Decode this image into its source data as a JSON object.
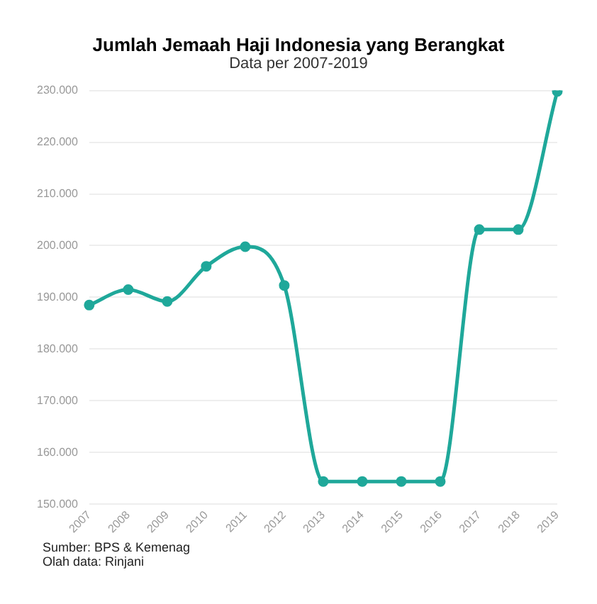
{
  "chart_data": {
    "type": "line",
    "title": "Jumlah Jemaah Haji Indonesia yang Berangkat",
    "subtitle": "Data per 2007-2019",
    "categories": [
      "2007",
      "2008",
      "2009",
      "2010",
      "2011",
      "2012",
      "2013",
      "2014",
      "2015",
      "2016",
      "2017",
      "2018",
      "2019"
    ],
    "series": [
      {
        "color": "#1fa89a",
        "values": [
          188500,
          191500,
          189200,
          196000,
          199800,
          192300,
          154400,
          154400,
          154400,
          154400,
          203100,
          203100,
          229800
        ]
      }
    ],
    "ylim": [
      150000,
      230000
    ],
    "yticks": [
      {
        "value": 150000,
        "label": "150.000"
      },
      {
        "value": 160000,
        "label": "160.000"
      },
      {
        "value": 170000,
        "label": "170.000"
      },
      {
        "value": 180000,
        "label": "180.000"
      },
      {
        "value": 190000,
        "label": "190.000"
      },
      {
        "value": 200000,
        "label": "200.000"
      },
      {
        "value": 210000,
        "label": "210.000"
      },
      {
        "value": 220000,
        "label": "220.000"
      },
      {
        "value": 230000,
        "label": "230.000"
      }
    ],
    "grid": "y",
    "legend": false,
    "marker": "circle",
    "line_style": "solid",
    "annotations": [
      "Sumber: BPS & Kemenag",
      "Olah data: Rinjani"
    ]
  }
}
